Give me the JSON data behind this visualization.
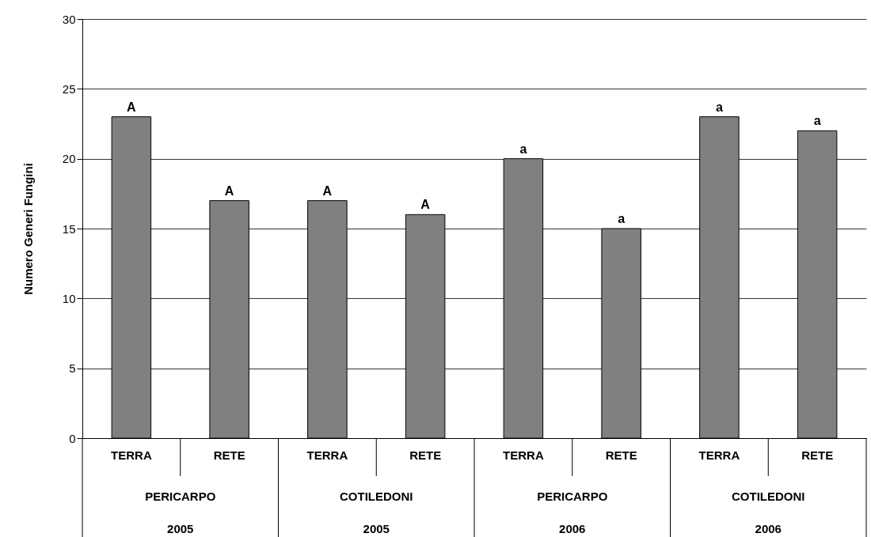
{
  "chart_data": {
    "type": "bar",
    "ylabel": "Numero Generi Fungini",
    "categories": [
      "TERRA",
      "RETE",
      "TERRA",
      "RETE",
      "TERRA",
      "RETE",
      "TERRA",
      "RETE"
    ],
    "values": [
      23,
      17,
      17,
      16,
      20,
      15,
      23,
      22
    ],
    "value_labels": [
      "A",
      "A",
      "A",
      "A",
      "a",
      "a",
      "a",
      "a"
    ],
    "color": "#808080",
    "ylim": [
      0,
      30
    ],
    "yticks": [
      0,
      5,
      10,
      15,
      20,
      25,
      30
    ],
    "grid": "y",
    "annotations": [
      "PERICARPO",
      "COTILEDONI",
      "PERICARPO",
      "COTILEDONI",
      "2005",
      "2005",
      "2006",
      "2006"
    ]
  }
}
